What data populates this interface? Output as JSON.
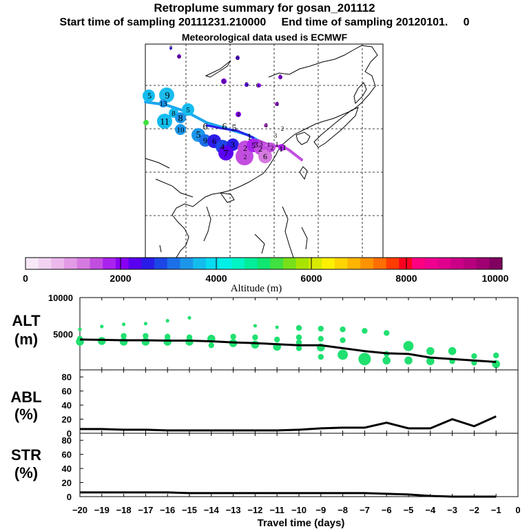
{
  "header": {
    "title": "Retroplume summary for gosan_201112",
    "subtitle": "Start time of sampling 20111231.210000     End time of sampling 20120101.     0",
    "met": "Meteorological data used is ECMWF"
  },
  "colorbar": {
    "ticks": [
      "0",
      "2000",
      "4000",
      "6000",
      "8000",
      "10000"
    ],
    "label": "Altitude (m)",
    "colors": [
      "#f8e8f8",
      "#f2d2f2",
      "#ecb8ec",
      "#e29ae6",
      "#d67ae0",
      "#c24ee0",
      "#aa22ee",
      "#8800f4",
      "#5a00f0",
      "#2a1ce8",
      "#1c46e6",
      "#1c70e8",
      "#1c96ea",
      "#14bcee",
      "#08dcf0",
      "#00f0e6",
      "#00f4c4",
      "#00ee9a",
      "#10e670",
      "#40e040",
      "#78e01a",
      "#a8e400",
      "#d8ea00",
      "#fef000",
      "#ffd400",
      "#ffb400",
      "#ff9200",
      "#ff6e00",
      "#ff3c00",
      "#ff0020",
      "#ff0080",
      "#f00090",
      "#e0008e",
      "#cc0088",
      "#b8007e",
      "#a00072",
      "#800060"
    ]
  },
  "map": {
    "labels": [
      "7",
      "6",
      "6",
      "5",
      "6",
      "5",
      "6",
      "4",
      "4",
      "3",
      "5",
      "9",
      "13",
      "8",
      "8",
      "5",
      "11",
      "10",
      "5",
      "9",
      "6",
      "6",
      "7",
      "6",
      "5",
      "4",
      "3",
      "2",
      "5",
      "1",
      "4",
      "2",
      "3",
      "1",
      "1",
      "2",
      "3",
      "1",
      "6",
      "1",
      "2",
      "2"
    ]
  },
  "chart_data": [
    {
      "type": "line",
      "name": "ALT",
      "ylabel": "ALT\n(m)",
      "ylim": [
        0,
        10000
      ],
      "yticks": [
        "10000",
        "5000",
        "0"
      ],
      "x": [
        -20,
        -19,
        -18,
        -17,
        -16,
        -15,
        -14,
        -13,
        -12,
        -11,
        -10,
        -9,
        -8,
        -7,
        -6,
        -5,
        -4,
        -3,
        -2,
        -1
      ],
      "median": [
        4200,
        4150,
        4100,
        4100,
        4050,
        4050,
        3950,
        3800,
        3700,
        3550,
        3400,
        3400,
        3000,
        2600,
        2300,
        2200,
        1700,
        1500,
        1300,
        1100
      ],
      "scatter": [
        {
          "x": -20,
          "y": 5600,
          "s": 1
        },
        {
          "x": -20,
          "y": 4300,
          "s": 2
        },
        {
          "x": -20,
          "y": 3900,
          "s": 3
        },
        {
          "x": -19,
          "y": 6000,
          "s": 1
        },
        {
          "x": -19,
          "y": 4000,
          "s": 3
        },
        {
          "x": -18,
          "y": 6300,
          "s": 1
        },
        {
          "x": -18,
          "y": 4700,
          "s": 2
        },
        {
          "x": -18,
          "y": 3900,
          "s": 3
        },
        {
          "x": -17,
          "y": 6400,
          "s": 1
        },
        {
          "x": -17,
          "y": 4700,
          "s": 2
        },
        {
          "x": -17,
          "y": 3900,
          "s": 3
        },
        {
          "x": -16,
          "y": 6800,
          "s": 1
        },
        {
          "x": -16,
          "y": 4600,
          "s": 2
        },
        {
          "x": -16,
          "y": 3900,
          "s": 3
        },
        {
          "x": -15,
          "y": 7200,
          "s": 1
        },
        {
          "x": -15,
          "y": 4500,
          "s": 2
        },
        {
          "x": -15,
          "y": 3900,
          "s": 3
        },
        {
          "x": -14,
          "y": 4300,
          "s": 3
        },
        {
          "x": -14,
          "y": 3400,
          "s": 2
        },
        {
          "x": -13,
          "y": 4600,
          "s": 2
        },
        {
          "x": -13,
          "y": 3700,
          "s": 3
        },
        {
          "x": -12,
          "y": 6100,
          "s": 1
        },
        {
          "x": -12,
          "y": 4500,
          "s": 2
        },
        {
          "x": -12,
          "y": 3500,
          "s": 3
        },
        {
          "x": -11,
          "y": 5900,
          "s": 1
        },
        {
          "x": -11,
          "y": 4200,
          "s": 2
        },
        {
          "x": -11,
          "y": 3200,
          "s": 3
        },
        {
          "x": -10,
          "y": 5800,
          "s": 2
        },
        {
          "x": -10,
          "y": 4500,
          "s": 2
        },
        {
          "x": -10,
          "y": 3800,
          "s": 2
        },
        {
          "x": -10,
          "y": 3000,
          "s": 2
        },
        {
          "x": -9,
          "y": 5700,
          "s": 2
        },
        {
          "x": -9,
          "y": 4300,
          "s": 2
        },
        {
          "x": -9,
          "y": 3100,
          "s": 3
        },
        {
          "x": -9,
          "y": 1800,
          "s": 2
        },
        {
          "x": -8,
          "y": 5600,
          "s": 2
        },
        {
          "x": -8,
          "y": 4100,
          "s": 2
        },
        {
          "x": -8,
          "y": 2100,
          "s": 4
        },
        {
          "x": -7,
          "y": 5400,
          "s": 2
        },
        {
          "x": -7,
          "y": 1500,
          "s": 5
        },
        {
          "x": -6,
          "y": 5100,
          "s": 2
        },
        {
          "x": -6,
          "y": 2200,
          "s": 2
        },
        {
          "x": -6,
          "y": 1300,
          "s": 3
        },
        {
          "x": -5,
          "y": 3300,
          "s": 4
        },
        {
          "x": -5,
          "y": 1300,
          "s": 3
        },
        {
          "x": -4,
          "y": 2600,
          "s": 3
        },
        {
          "x": -4,
          "y": 1200,
          "s": 3
        },
        {
          "x": -3,
          "y": 2600,
          "s": 3
        },
        {
          "x": -3,
          "y": 1200,
          "s": 2
        },
        {
          "x": -2,
          "y": 1900,
          "s": 2
        },
        {
          "x": -2,
          "y": 1000,
          "s": 2
        },
        {
          "x": -1,
          "y": 2000,
          "s": 2
        },
        {
          "x": -1,
          "y": 800,
          "s": 3
        }
      ]
    },
    {
      "type": "line",
      "name": "ABL",
      "ylabel": "ABL\n(%)",
      "ylim": [
        0,
        90
      ],
      "yticks": [
        "80",
        "60",
        "40",
        "20",
        "0"
      ],
      "x": [
        -20,
        -19,
        -18,
        -17,
        -16,
        -15,
        -14,
        -13,
        -12,
        -11,
        -10,
        -9,
        -8,
        -7,
        -6,
        -5,
        -4,
        -3,
        -2,
        -1
      ],
      "values": [
        6,
        6,
        5,
        5,
        4,
        4,
        4,
        4,
        4,
        4,
        5,
        7,
        8,
        8,
        15,
        7,
        7,
        20,
        10,
        24
      ]
    },
    {
      "type": "line",
      "name": "STR",
      "ylabel": "STR\n(%)",
      "ylim": [
        0,
        90
      ],
      "yticks": [
        "80",
        "60",
        "40",
        "20",
        "0"
      ],
      "x": [
        -20,
        -19,
        -18,
        -17,
        -16,
        -15,
        -14,
        -13,
        -12,
        -11,
        -10,
        -9,
        -8,
        -7,
        -6,
        -5,
        -4,
        -3,
        -2,
        -1
      ],
      "values": [
        6,
        6,
        6,
        6,
        6,
        5,
        5,
        5,
        5,
        5,
        5,
        5,
        5,
        5,
        4,
        3,
        1,
        0,
        0,
        0
      ]
    }
  ],
  "xaxis": {
    "ticks": [
      "−20",
      "−19",
      "−18",
      "−17",
      "−16",
      "−15",
      "−14",
      "−13",
      "−12",
      "−11",
      "−10",
      "−9",
      "−8",
      "−7",
      "−6",
      "−5",
      "−4",
      "−3",
      "−2",
      "−1",
      "0"
    ],
    "label": "Travel time (days)"
  }
}
